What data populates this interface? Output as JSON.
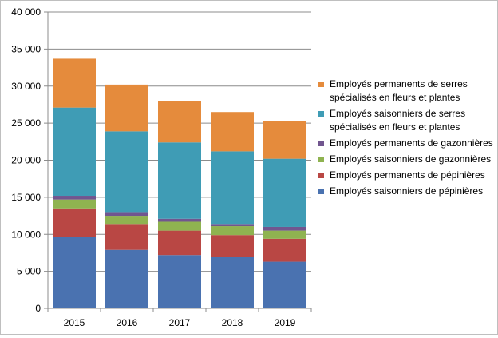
{
  "chart_data": {
    "type": "bar",
    "stacked": true,
    "categories": [
      "2015",
      "2016",
      "2017",
      "2018",
      "2019"
    ],
    "ylim": [
      0,
      40000
    ],
    "yticks": [
      0,
      5000,
      10000,
      15000,
      20000,
      25000,
      30000,
      35000,
      40000
    ],
    "ytick_labels": [
      "0",
      "5 000",
      "10 000",
      "15 000",
      "20 000",
      "25 000",
      "30 000",
      "35 000",
      "40 000"
    ],
    "grid": true,
    "legend_position": "right",
    "series": [
      {
        "name": "Employés saisonniers de pépinières",
        "color": "#4a72b0",
        "values": [
          9700,
          7900,
          7200,
          6900,
          6300
        ]
      },
      {
        "name": "Employés permanents de pépinières",
        "color": "#b94744",
        "values": [
          3800,
          3500,
          3300,
          3000,
          3100
        ]
      },
      {
        "name": "Employés saisonniers de gazonnières",
        "color": "#8fb350",
        "values": [
          1200,
          1100,
          1200,
          1200,
          1100
        ]
      },
      {
        "name": "Employés permanents de gazonnières",
        "color": "#71568f",
        "values": [
          500,
          500,
          400,
          300,
          500
        ]
      },
      {
        "name": "Employés saisonniers de serres spécialisés en fleurs et plantes",
        "color": "#3f9cb5",
        "values": [
          11900,
          10900,
          10300,
          9800,
          9200
        ]
      },
      {
        "name": "Employés permanents de serres spécialisés en fleurs et plantes",
        "color": "#e58b3c",
        "values": [
          6600,
          6300,
          5600,
          5300,
          5100
        ]
      }
    ]
  }
}
